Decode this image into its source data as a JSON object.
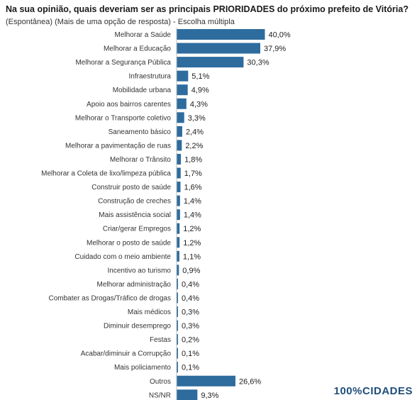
{
  "chart_data": {
    "type": "bar",
    "orientation": "horizontal",
    "title": "Na sua opinião, quais deveriam ser as principais PRIORIDADES do próximo prefeito de Vitória?",
    "subtitle": "(Espontânea) (Mais de uma opção de resposta) - Escolha múltipla",
    "categories": [
      "Melhorar a Saúde",
      "Melhorar a Educação",
      "Melhorar a Segurança Pública",
      "Infraestrutura",
      "Mobilidade urbana",
      "Apoio aos bairros carentes",
      "Melhorar o Transporte coletivo",
      "Saneamento básico",
      "Melhorar a pavimentação de ruas",
      "Melhorar o Trânsito",
      "Melhorar a Coleta de lixo/limpeza pública",
      "Construir posto de saúde",
      "Construção de creches",
      "Mais assistência social",
      "Criar/gerar Empregos",
      "Melhorar o posto de saúde",
      "Cuidado com o meio ambiente",
      "Incentivo ao turismo",
      "Melhorar administração",
      "Combater as Drogas/Tráfico de drogas",
      "Mais médicos",
      "Diminuir desemprego",
      "Festas",
      "Acabar/diminuir a Corrupção",
      "Mais policiamento",
      "Outros",
      "NS/NR"
    ],
    "values": [
      40.0,
      37.9,
      30.3,
      5.1,
      4.9,
      4.3,
      3.3,
      2.4,
      2.2,
      1.8,
      1.7,
      1.6,
      1.4,
      1.4,
      1.2,
      1.2,
      1.1,
      0.9,
      0.4,
      0.4,
      0.3,
      0.3,
      0.2,
      0.1,
      0.1,
      26.6,
      9.3
    ],
    "value_labels": [
      "40,0%",
      "37,9%",
      "30,3%",
      "5,1%",
      "4,9%",
      "4,3%",
      "3,3%",
      "2,4%",
      "2,2%",
      "1,8%",
      "1,7%",
      "1,6%",
      "1,4%",
      "1,4%",
      "1,2%",
      "1,2%",
      "1,1%",
      "0,9%",
      "0,4%",
      "0,4%",
      "0,3%",
      "0,3%",
      "0,2%",
      "0,1%",
      "0,1%",
      "26,6%",
      "9,3%"
    ],
    "unit": "%",
    "xlim": [
      0,
      40
    ],
    "grid": false,
    "legend": "none",
    "bar_color": "#2e6c9e"
  },
  "branding": {
    "logo_text": "100%CIDADES"
  }
}
